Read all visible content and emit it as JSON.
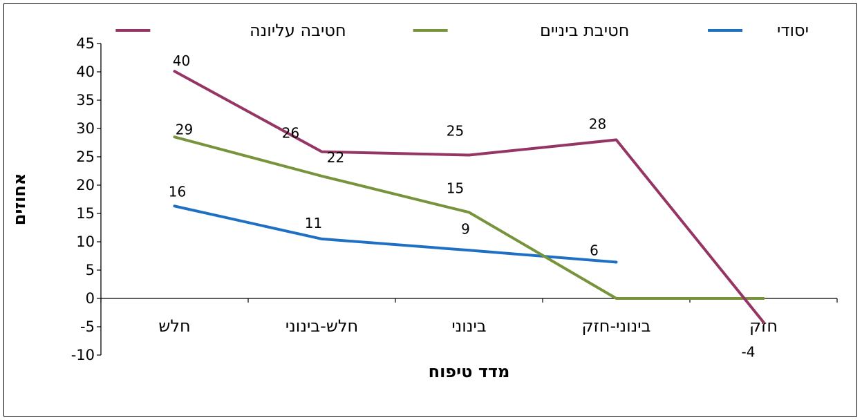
{
  "chart_data": {
    "type": "line",
    "categories": [
      "חזק",
      "בינוני-חזק",
      "בינוני",
      "חלש-בינוני",
      "חלש"
    ],
    "xlabel": "מדד טיפוח",
    "ylabel": "אחוזים",
    "ylim": [
      -10,
      45
    ],
    "ystep": 5,
    "legend_position": "top",
    "series": [
      {
        "name": "יסודי",
        "color": "#1f6fc5",
        "values": [
          null,
          6.4,
          8.5,
          10.5,
          16.3
        ],
        "labels": [
          "",
          "6",
          "9",
          "11",
          "16"
        ]
      },
      {
        "name": "חטיבת ביניים",
        "color": "#77933c",
        "values": [
          0,
          0,
          15.2,
          21.6,
          28.5
        ],
        "labels": [
          "",
          "",
          "15",
          "22",
          "29"
        ]
      },
      {
        "name": "חטיבה עליונה",
        "color": "#953563",
        "values": [
          -4.2,
          28,
          25.3,
          25.9,
          40.1
        ],
        "labels": [
          "-4",
          "28",
          "25",
          "26",
          "40"
        ]
      }
    ]
  }
}
